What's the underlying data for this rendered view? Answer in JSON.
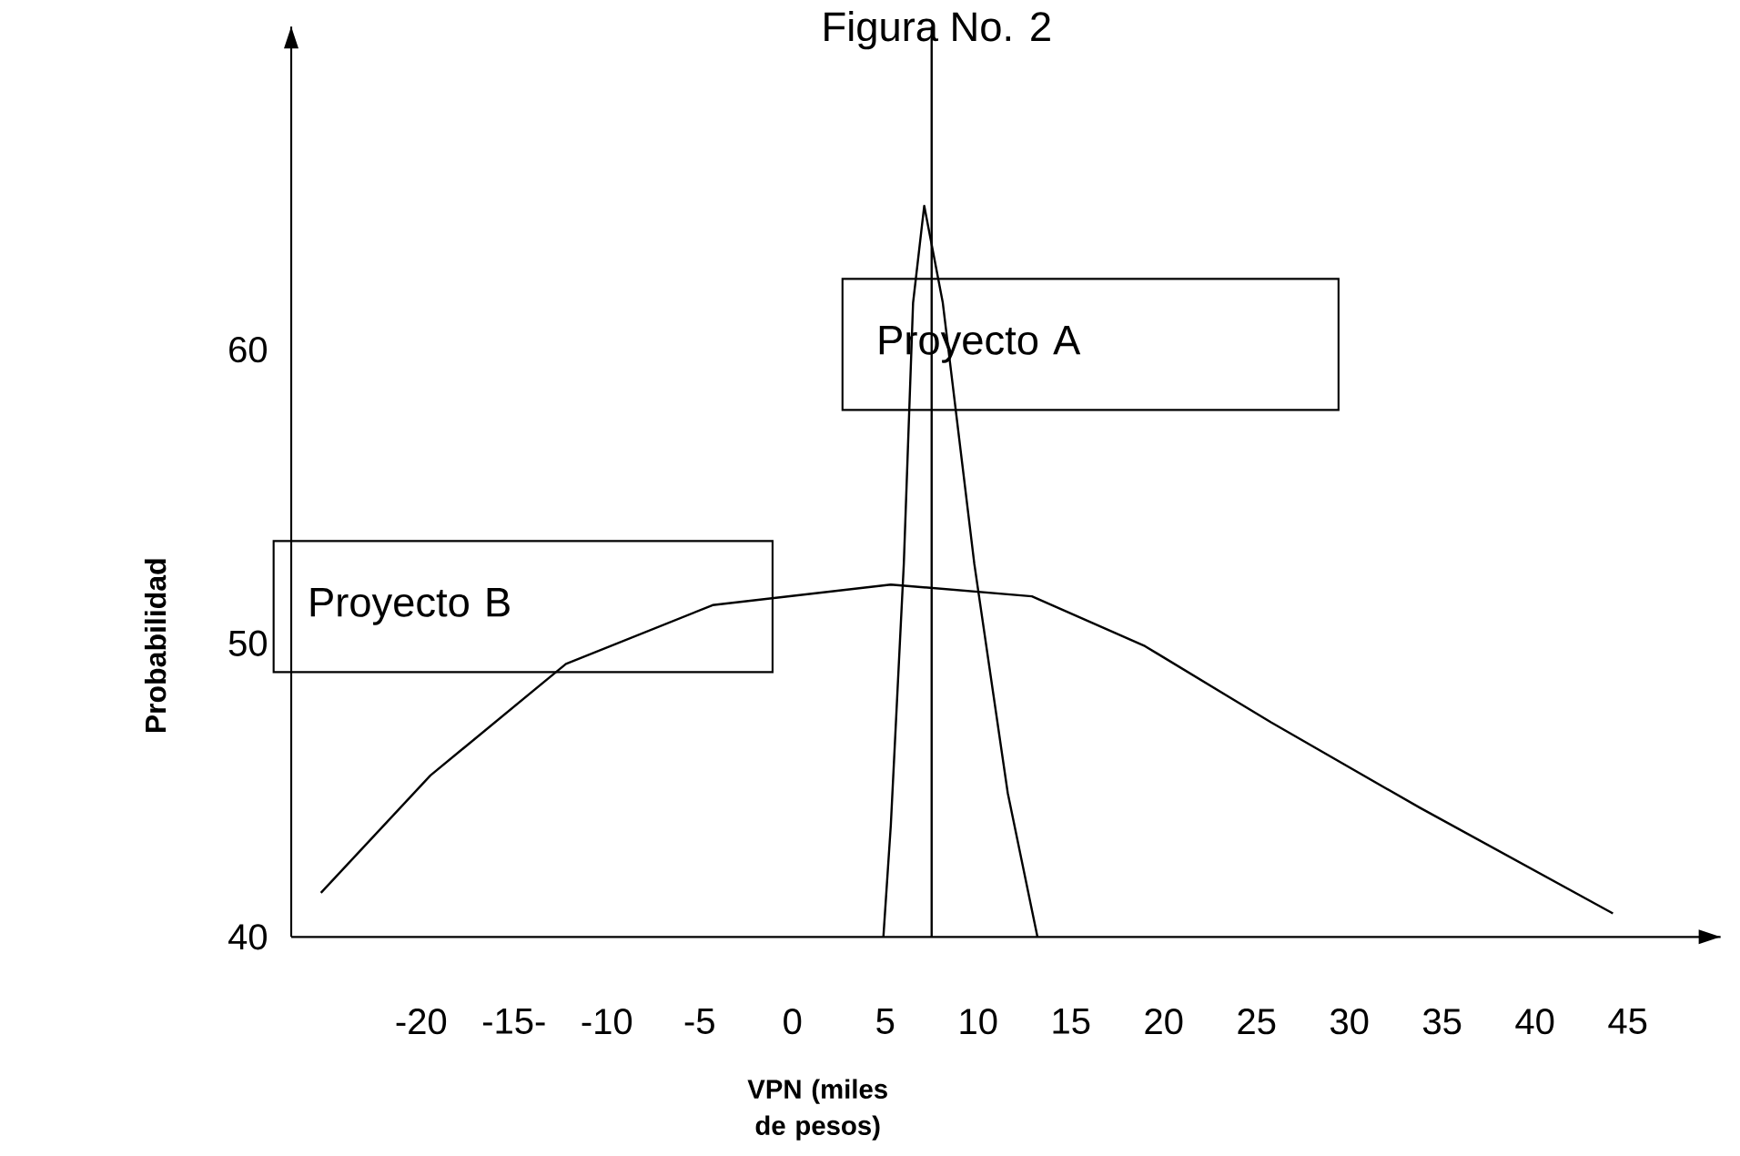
{
  "chart_data": {
    "type": "line",
    "title": "Figura No. 2",
    "xlabel": "VPN (miles de pesos)",
    "ylabel": "Probabilidad",
    "xlim": [
      -27,
      50
    ],
    "ylim": [
      40,
      71
    ],
    "xticks": [
      -20,
      {
        "value": -15,
        "label": "-15-"
      },
      -10,
      -5,
      0,
      5,
      10,
      15,
      20,
      25,
      30,
      35,
      40,
      45
    ],
    "yticks": [
      40,
      50,
      60
    ],
    "series": [
      {
        "name": "Proyecto A",
        "color": "#000000",
        "x": [
          4.9,
          5.3,
          6.0,
          6.5,
          7.1,
          8.1,
          9.8,
          11.6,
          13.2
        ],
        "values": [
          40,
          43.8,
          52.7,
          61.6,
          64.9,
          61.6,
          52.7,
          44.9,
          40
        ]
      },
      {
        "name": "Proyecto B",
        "color": "#000000",
        "x": [
          -25.4,
          -19.5,
          -12.2,
          -4.3,
          5.3,
          12.9,
          19,
          25.8,
          33.8,
          44.2
        ],
        "values": [
          41.5,
          45.5,
          49.3,
          51.3,
          52.0,
          51.6,
          49.9,
          47.3,
          44.4,
          40.8
        ]
      }
    ],
    "ref_lines": [
      {
        "axis": "x",
        "value": 7.5,
        "color": "#000000"
      }
    ],
    "grid": false,
    "legend": false,
    "marker": "none",
    "line_style": "solid"
  }
}
